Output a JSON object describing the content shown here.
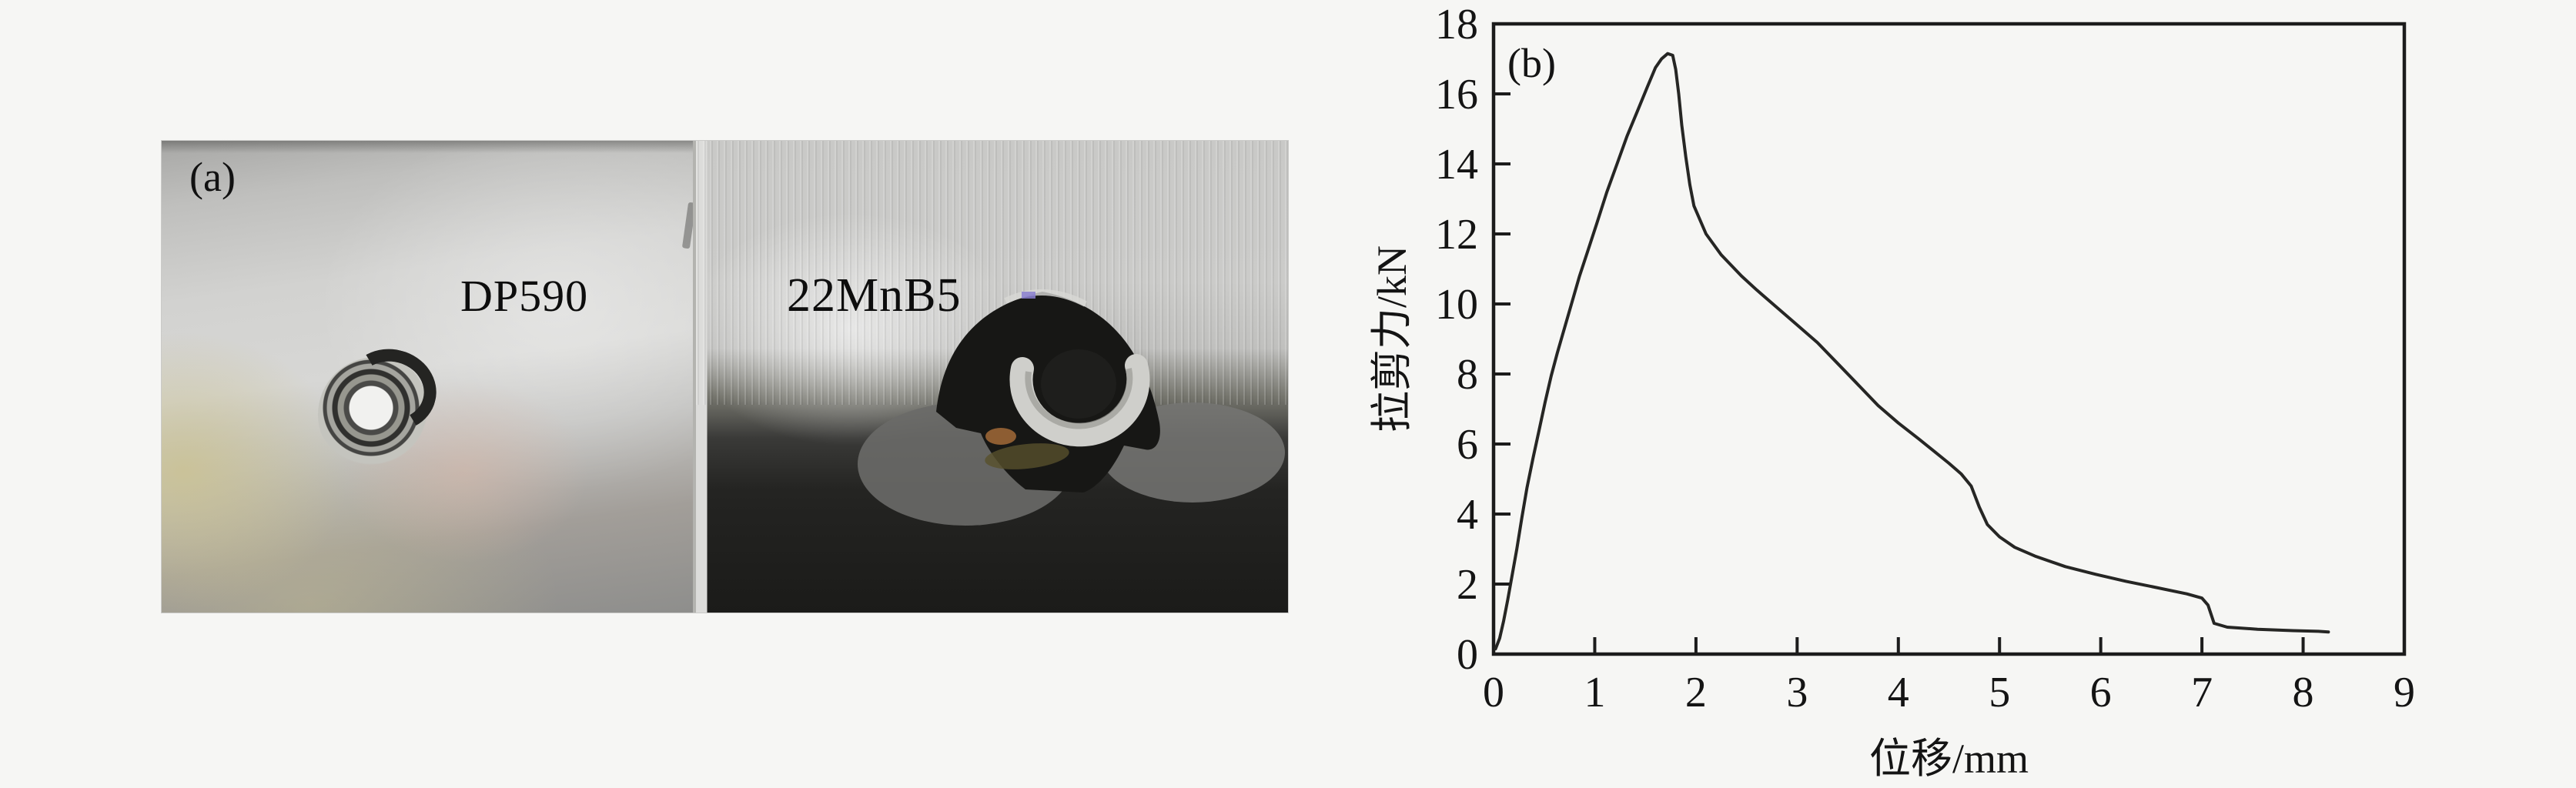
{
  "figure": {
    "panel_a_label": "(a)",
    "panel_b_label": "(b)"
  },
  "photo": {
    "left_label": "DP590",
    "right_label": "22MnB5"
  },
  "colors": {
    "background": "#f6f6f4",
    "axis": "#1c1c1c",
    "curve": "#262624",
    "text": "#141414"
  },
  "chart_data": {
    "type": "line",
    "title": "",
    "xlabel": "位移/mm",
    "ylabel": "拉剪力/kN",
    "xlim": [
      0,
      9
    ],
    "ylim": [
      0,
      18
    ],
    "x_ticks": [
      0,
      1,
      2,
      3,
      4,
      5,
      6,
      7,
      8,
      9
    ],
    "y_ticks": [
      0,
      2,
      4,
      6,
      8,
      10,
      12,
      14,
      16,
      18
    ],
    "grid": false,
    "legend": null,
    "series": [
      {
        "name": "tensile-shear force vs displacement",
        "points": [
          [
            0.02,
            0.15
          ],
          [
            0.06,
            0.45
          ],
          [
            0.1,
            0.95
          ],
          [
            0.14,
            1.55
          ],
          [
            0.18,
            2.2
          ],
          [
            0.23,
            3.0
          ],
          [
            0.28,
            3.9
          ],
          [
            0.33,
            4.75
          ],
          [
            0.39,
            5.6
          ],
          [
            0.45,
            6.4
          ],
          [
            0.51,
            7.2
          ],
          [
            0.57,
            7.95
          ],
          [
            0.63,
            8.6
          ],
          [
            0.7,
            9.3
          ],
          [
            0.77,
            10.0
          ],
          [
            0.85,
            10.8
          ],
          [
            0.93,
            11.5
          ],
          [
            1.02,
            12.3
          ],
          [
            1.12,
            13.2
          ],
          [
            1.22,
            14.0
          ],
          [
            1.32,
            14.8
          ],
          [
            1.42,
            15.5
          ],
          [
            1.52,
            16.2
          ],
          [
            1.6,
            16.75
          ],
          [
            1.66,
            17.0
          ],
          [
            1.72,
            17.15
          ],
          [
            1.77,
            17.1
          ],
          [
            1.8,
            16.7
          ],
          [
            1.83,
            16.0
          ],
          [
            1.86,
            15.1
          ],
          [
            1.9,
            14.2
          ],
          [
            1.94,
            13.4
          ],
          [
            1.98,
            12.8
          ],
          [
            2.1,
            12.0
          ],
          [
            2.25,
            11.4
          ],
          [
            2.45,
            10.8
          ],
          [
            2.6,
            10.4
          ],
          [
            2.8,
            9.9
          ],
          [
            3.0,
            9.4
          ],
          [
            3.2,
            8.9
          ],
          [
            3.4,
            8.3
          ],
          [
            3.6,
            7.7
          ],
          [
            3.8,
            7.1
          ],
          [
            4.0,
            6.6
          ],
          [
            4.2,
            6.15
          ],
          [
            4.35,
            5.8
          ],
          [
            4.5,
            5.45
          ],
          [
            4.62,
            5.15
          ],
          [
            4.72,
            4.8
          ],
          [
            4.8,
            4.2
          ],
          [
            4.88,
            3.7
          ],
          [
            5.0,
            3.35
          ],
          [
            5.15,
            3.05
          ],
          [
            5.35,
            2.8
          ],
          [
            5.65,
            2.5
          ],
          [
            5.95,
            2.28
          ],
          [
            6.25,
            2.08
          ],
          [
            6.55,
            1.9
          ],
          [
            6.85,
            1.72
          ],
          [
            7.0,
            1.6
          ],
          [
            7.06,
            1.4
          ],
          [
            7.12,
            0.88
          ],
          [
            7.25,
            0.77
          ],
          [
            7.55,
            0.71
          ],
          [
            7.9,
            0.67
          ],
          [
            8.15,
            0.65
          ],
          [
            8.25,
            0.63
          ]
        ]
      }
    ]
  }
}
